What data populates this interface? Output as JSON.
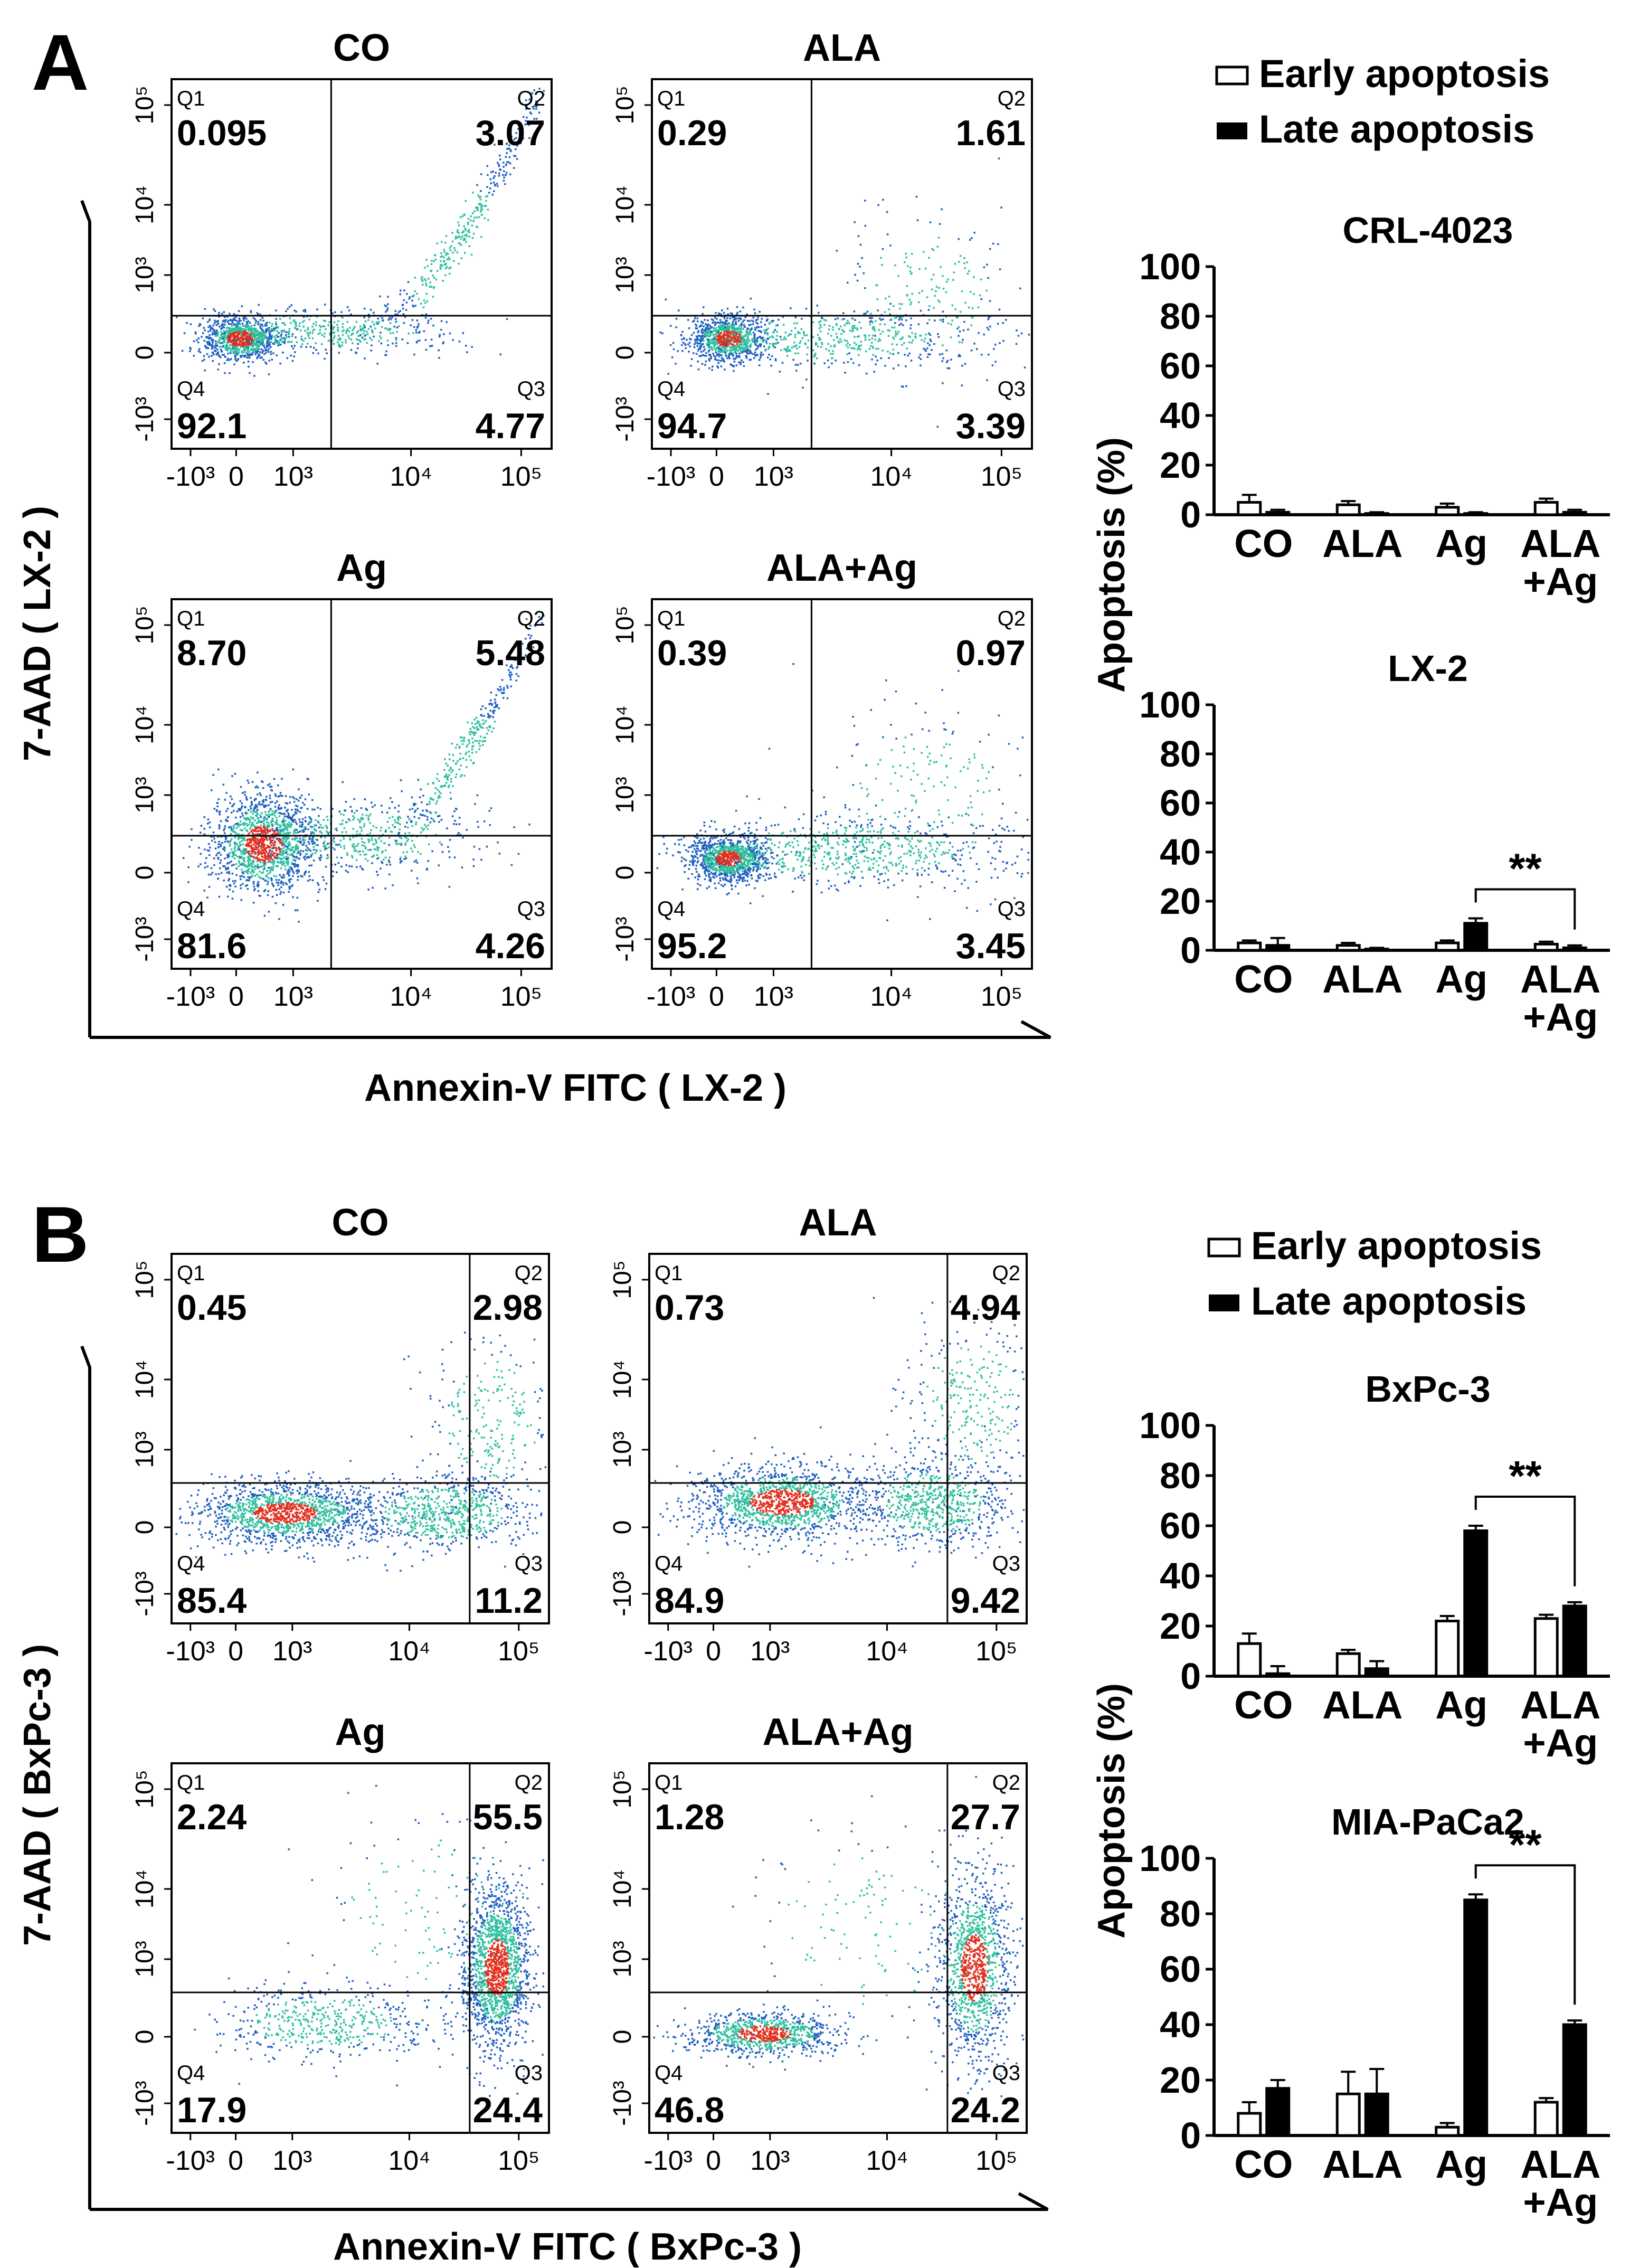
{
  "panels": [
    {
      "label": "A",
      "x_axis_label": "Annexin-V FITC ( LX-2 )",
      "y_axis_label": "7-AAD ( LX-2 )",
      "plots": [
        {
          "title": "CO",
          "values": {
            "Q1": "0.095",
            "Q2": "3.07",
            "Q3": "4.77",
            "Q4": "92.1"
          }
        },
        {
          "title": "ALA",
          "values": {
            "Q1": "0.29",
            "Q2": "1.61",
            "Q3": "3.39",
            "Q4": "94.7"
          }
        },
        {
          "title": "Ag",
          "values": {
            "Q1": "8.70",
            "Q2": "5.48",
            "Q3": "4.26",
            "Q4": "81.6"
          }
        },
        {
          "title": "ALA+Ag",
          "values": {
            "Q1": "0.39",
            "Q2": "0.97",
            "Q3": "3.45",
            "Q4": "95.2"
          }
        }
      ],
      "charts": [
        {
          "title": "CRL-4023",
          "significance": ""
        },
        {
          "title": "LX-2",
          "significance": "**"
        }
      ]
    },
    {
      "label": "B",
      "x_axis_label": "Annexin-V FITC ( BxPc-3 )",
      "y_axis_label": "7-AAD ( BxPc-3 )",
      "plots": [
        {
          "title": "CO",
          "values": {
            "Q1": "0.45",
            "Q2": "2.98",
            "Q3": "11.2",
            "Q4": "85.4"
          }
        },
        {
          "title": "ALA",
          "values": {
            "Q1": "0.73",
            "Q2": "4.94",
            "Q3": "9.42",
            "Q4": "84.9"
          }
        },
        {
          "title": "Ag",
          "values": {
            "Q1": "2.24",
            "Q2": "55.5",
            "Q3": "24.4",
            "Q4": "17.9"
          }
        },
        {
          "title": "ALA+Ag",
          "values": {
            "Q1": "1.28",
            "Q2": "27.7",
            "Q3": "24.2",
            "Q4": "46.8"
          }
        }
      ],
      "charts": [
        {
          "title": "BxPc-3",
          "significance": "**"
        },
        {
          "title": "MIA-PaCa2",
          "significance": "**"
        }
      ]
    }
  ],
  "flow_axis": {
    "x_ticks": [
      "-10³",
      "0",
      "10³",
      "10⁴",
      "10⁵"
    ],
    "y_ticks": [
      "10⁵",
      "10⁴",
      "10³",
      "0",
      "-10³"
    ],
    "quadrants": [
      "Q1",
      "Q2",
      "Q3",
      "Q4"
    ]
  },
  "bar_axis": {
    "ylabel": "Apoptosis (%)",
    "ticks": [
      "100",
      "80",
      "60",
      "40",
      "20",
      "0"
    ],
    "categories": [
      "CO",
      "ALA",
      "Ag",
      "ALA+Ag"
    ],
    "category_lines": [
      [
        "CO"
      ],
      [
        "ALA"
      ],
      [
        "Ag"
      ],
      [
        "ALA",
        "+Ag"
      ]
    ]
  },
  "legend": {
    "early": "Early  apoptosis",
    "late": "Late    apoptosis"
  },
  "colors": {
    "early_bar": "#ffffff",
    "late_bar": "#000000",
    "dot_low": "#1f5fbf",
    "dot_mid": "#2fbf9f",
    "dot_high": "#e03020"
  },
  "chart_data": [
    {
      "type": "bar",
      "title": "CRL-4023",
      "ylabel": "Apoptosis (%)",
      "ylim": [
        0,
        100
      ],
      "categories": [
        "CO",
        "ALA",
        "Ag",
        "ALA+Ag"
      ],
      "series": [
        {
          "name": "Early apoptosis",
          "values": [
            5,
            4,
            3,
            5
          ],
          "errors": [
            3,
            1.5,
            1.5,
            1.5
          ]
        },
        {
          "name": "Late apoptosis",
          "values": [
            1,
            0.5,
            0.5,
            1
          ],
          "errors": [
            1,
            0.5,
            0.5,
            1
          ]
        }
      ]
    },
    {
      "type": "bar",
      "title": "LX-2",
      "ylabel": "Apoptosis (%)",
      "ylim": [
        0,
        100
      ],
      "categories": [
        "CO",
        "ALA",
        "Ag",
        "ALA+Ag"
      ],
      "series": [
        {
          "name": "Early apoptosis",
          "values": [
            3,
            2,
            3,
            2.5
          ],
          "errors": [
            1,
            1,
            1,
            1
          ]
        },
        {
          "name": "Late apoptosis",
          "values": [
            2,
            0.5,
            11,
            1
          ],
          "errors": [
            3,
            0.5,
            2,
            1
          ]
        }
      ],
      "significance": {
        "from": "Ag",
        "to": "ALA+Ag",
        "label": "**"
      }
    },
    {
      "type": "bar",
      "title": "BxPc-3",
      "ylabel": "Apoptosis (%)",
      "ylim": [
        0,
        100
      ],
      "categories": [
        "CO",
        "ALA",
        "Ag",
        "ALA+Ag"
      ],
      "series": [
        {
          "name": "Early apoptosis",
          "values": [
            13,
            9,
            22,
            23
          ],
          "errors": [
            4,
            1.5,
            2,
            1.5
          ]
        },
        {
          "name": "Late apoptosis",
          "values": [
            1,
            3,
            58,
            28
          ],
          "errors": [
            3,
            3,
            2,
            1.5
          ]
        }
      ],
      "significance": {
        "from": "Ag",
        "to": "ALA+Ag",
        "label": "**"
      }
    },
    {
      "type": "bar",
      "title": "MIA-PaCa2",
      "ylabel": "Apoptosis (%)",
      "ylim": [
        0,
        100
      ],
      "categories": [
        "CO",
        "ALA",
        "Ag",
        "ALA+Ag"
      ],
      "series": [
        {
          "name": "Early apoptosis",
          "values": [
            8,
            15,
            3,
            12
          ],
          "errors": [
            4,
            8,
            1.5,
            1.5
          ]
        },
        {
          "name": "Late apoptosis",
          "values": [
            17,
            15,
            85,
            40
          ],
          "errors": [
            3,
            9,
            2,
            1.5
          ]
        }
      ],
      "significance": {
        "from": "Ag",
        "to": "ALA+Ag",
        "label": "**"
      }
    }
  ],
  "flow_data": [
    {
      "panel": "A",
      "title": "CO",
      "dist": [
        {
          "n": 900,
          "lx": 0.18,
          "ly": 0.3,
          "sx": 0.05,
          "sy": 0.03
        },
        {
          "n": 450,
          "lx": 0.4,
          "ly": 0.32,
          "sx": 0.18,
          "sy": 0.03
        },
        {
          "n": 350,
          "lx": 0.78,
          "ly": 0.5,
          "sx": 0.12,
          "sy": 0.15,
          "curve": 1
        }
      ]
    },
    {
      "panel": "A",
      "title": "ALA",
      "dist": [
        {
          "n": 900,
          "lx": 0.2,
          "ly": 0.3,
          "sx": 0.05,
          "sy": 0.03
        },
        {
          "n": 500,
          "lx": 0.45,
          "ly": 0.3,
          "sx": 0.2,
          "sy": 0.04
        },
        {
          "n": 200,
          "lx": 0.72,
          "ly": 0.42,
          "sx": 0.12,
          "sy": 0.12
        }
      ]
    },
    {
      "panel": "A",
      "title": "Ag",
      "dist": [
        {
          "n": 1400,
          "lx": 0.24,
          "ly": 0.34,
          "sx": 0.07,
          "sy": 0.07
        },
        {
          "n": 500,
          "lx": 0.5,
          "ly": 0.36,
          "sx": 0.16,
          "sy": 0.05
        },
        {
          "n": 300,
          "lx": 0.8,
          "ly": 0.5,
          "sx": 0.1,
          "sy": 0.14,
          "curve": 1
        }
      ]
    },
    {
      "panel": "A",
      "title": "ALA+Ag",
      "dist": [
        {
          "n": 1000,
          "lx": 0.2,
          "ly": 0.3,
          "sx": 0.05,
          "sy": 0.03
        },
        {
          "n": 700,
          "lx": 0.5,
          "ly": 0.32,
          "sx": 0.22,
          "sy": 0.05
        },
        {
          "n": 200,
          "lx": 0.72,
          "ly": 0.45,
          "sx": 0.14,
          "sy": 0.14
        }
      ]
    },
    {
      "panel": "B",
      "title": "CO",
      "dist": [
        {
          "n": 1400,
          "lx": 0.3,
          "ly": 0.3,
          "sx": 0.12,
          "sy": 0.04
        },
        {
          "n": 700,
          "lx": 0.72,
          "ly": 0.3,
          "sx": 0.12,
          "sy": 0.05
        },
        {
          "n": 250,
          "lx": 0.85,
          "ly": 0.55,
          "sx": 0.09,
          "sy": 0.12
        }
      ]
    },
    {
      "panel": "B",
      "title": "ALA",
      "dist": [
        {
          "n": 1400,
          "lx": 0.35,
          "ly": 0.33,
          "sx": 0.12,
          "sy": 0.05
        },
        {
          "n": 700,
          "lx": 0.75,
          "ly": 0.33,
          "sx": 0.1,
          "sy": 0.06
        },
        {
          "n": 300,
          "lx": 0.85,
          "ly": 0.6,
          "sx": 0.09,
          "sy": 0.12
        }
      ]
    },
    {
      "panel": "B",
      "title": "Ag",
      "dist": [
        {
          "n": 500,
          "lx": 0.4,
          "ly": 0.3,
          "sx": 0.14,
          "sy": 0.05
        },
        {
          "n": 1600,
          "lx": 0.86,
          "ly": 0.45,
          "sx": 0.045,
          "sy": 0.11
        },
        {
          "n": 150,
          "lx": 0.7,
          "ly": 0.6,
          "sx": 0.18,
          "sy": 0.15
        }
      ]
    },
    {
      "panel": "B",
      "title": "ALA+Ag",
      "dist": [
        {
          "n": 900,
          "lx": 0.3,
          "ly": 0.27,
          "sx": 0.1,
          "sy": 0.03
        },
        {
          "n": 1200,
          "lx": 0.86,
          "ly": 0.45,
          "sx": 0.05,
          "sy": 0.13
        },
        {
          "n": 150,
          "lx": 0.6,
          "ly": 0.55,
          "sx": 0.2,
          "sy": 0.15
        }
      ]
    }
  ]
}
